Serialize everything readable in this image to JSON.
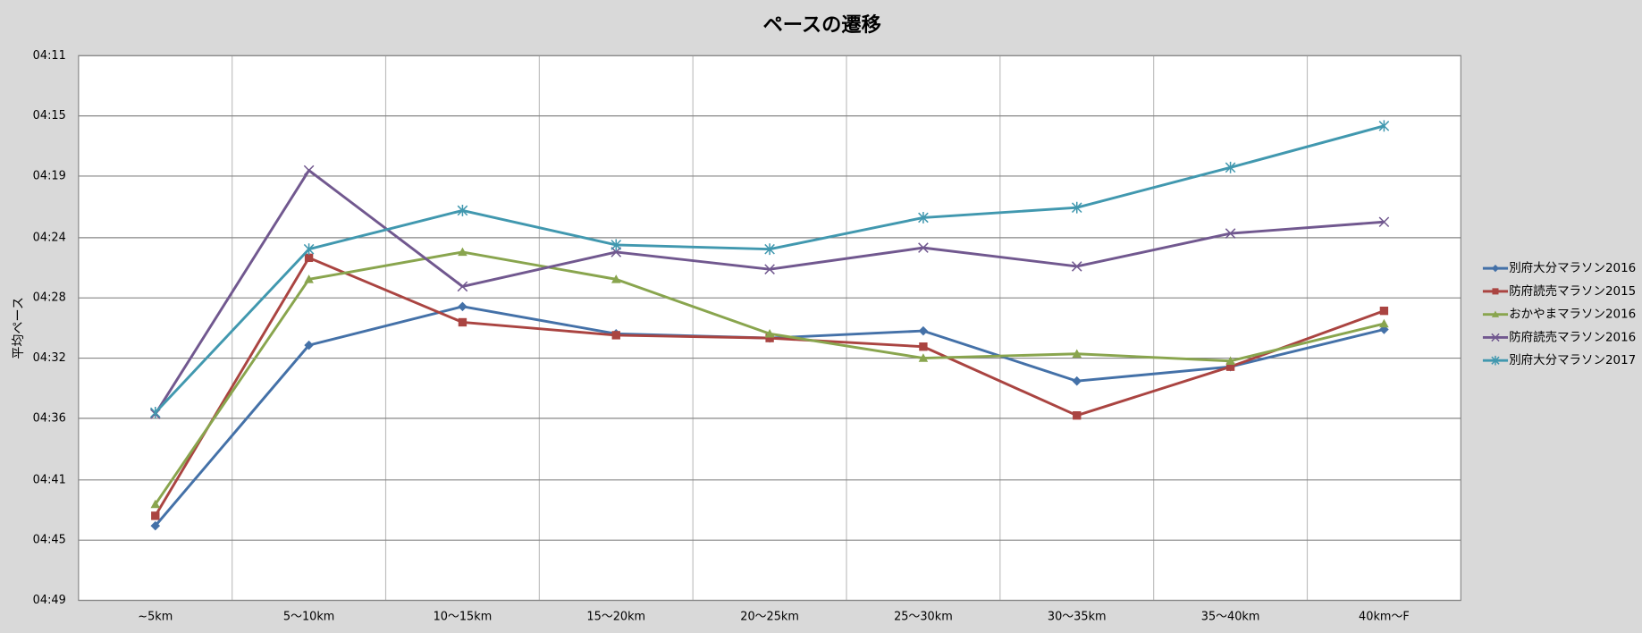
{
  "chart_data": {
    "type": "line",
    "title": "ペースの遷移",
    "y_label": "平均ペース",
    "categories": [
      "~5km",
      "5〜10km",
      "10〜15km",
      "15〜20km",
      "20〜25km",
      "25〜30km",
      "30〜35km",
      "35〜40km",
      "40km〜F"
    ],
    "ylim": [
      251,
      289
    ],
    "y_reversed": true,
    "yticks": [
      {
        "value": 251,
        "label": "04:11"
      },
      {
        "value": 255.2,
        "label": "04:15"
      },
      {
        "value": 259.4,
        "label": "04:19"
      },
      {
        "value": 263.7,
        "label": "04:24"
      },
      {
        "value": 267.9,
        "label": "04:28"
      },
      {
        "value": 272.1,
        "label": "04:32"
      },
      {
        "value": 276.3,
        "label": "04:36"
      },
      {
        "value": 280.6,
        "label": "04:41"
      },
      {
        "value": 284.8,
        "label": "04:45"
      },
      {
        "value": 289,
        "label": "04:49"
      }
    ],
    "grid": true,
    "legend": "right",
    "series": [
      {
        "name": "別府大分マラソン2016",
        "color": "#4471a8",
        "marker": "diamond",
        "values": [
          283.8,
          271.2,
          268.5,
          270.4,
          270.7,
          270.2,
          273.7,
          272.7,
          270.1
        ]
      },
      {
        "name": "防府読売マラソン2015",
        "color": "#aa4441",
        "marker": "square",
        "values": [
          283.1,
          265.1,
          269.6,
          270.5,
          270.7,
          271.3,
          276.1,
          272.7,
          268.8
        ]
      },
      {
        "name": "おかやまマラソン2016",
        "color": "#89a54e",
        "marker": "triangle",
        "values": [
          282.3,
          266.6,
          264.7,
          266.6,
          270.4,
          272.1,
          271.8,
          272.3,
          269.7
        ]
      },
      {
        "name": "防府読売マラソン2016",
        "color": "#71588f",
        "marker": "x",
        "values": [
          276.0,
          259.0,
          267.1,
          264.7,
          265.9,
          264.4,
          265.7,
          263.4,
          262.6
        ]
      },
      {
        "name": "別府大分マラソン2017",
        "color": "#4198af",
        "marker": "star",
        "values": [
          275.9,
          264.5,
          261.8,
          264.2,
          264.5,
          262.3,
          261.6,
          258.8,
          255.9
        ]
      }
    ]
  }
}
